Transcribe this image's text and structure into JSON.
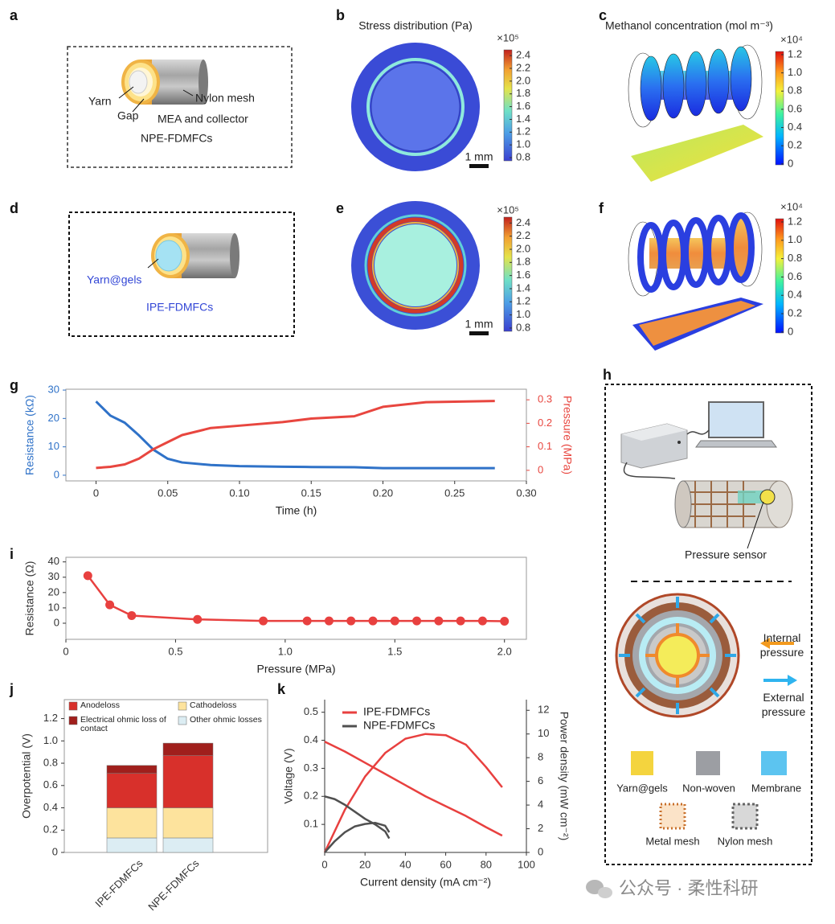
{
  "panel_labels": [
    "a",
    "b",
    "c",
    "d",
    "e",
    "f",
    "g",
    "h",
    "i",
    "j",
    "k"
  ],
  "a": {
    "labels": [
      "Yarn",
      "Gap",
      "Nylon mesh",
      "MEA and collector"
    ],
    "name": "NPE-FDMFCs"
  },
  "b": {
    "title": "Stress distribution (Pa)",
    "scale_bar": "1 mm",
    "colorbar": {
      "multiplier": "×10⁵",
      "lim": [
        0.75,
        2.49
      ],
      "ticks": [
        2.4,
        2.2,
        {
          "value": 2,
          "label": "2.0"
        },
        1.8,
        1.6,
        1.4,
        1.2,
        {
          "value": 1,
          "label": "1.0"
        },
        0.8
      ]
    }
  },
  "c": {
    "title": "Methanol concentration (mol m⁻³)",
    "colorbar": {
      "multiplier": "×10⁴",
      "lim": [
        -0.01,
        1.235
      ],
      "ticks": [
        1.2,
        {
          "value": 1,
          "label": "1.0"
        },
        0.8,
        0.6,
        0.4,
        0.2,
        0
      ]
    }
  },
  "d": {
    "labels": [
      "Yarn@gels"
    ],
    "name": "IPE-FDMFCs"
  },
  "e": {
    "scale_bar": "1 mm",
    "colorbar": {
      "multiplier": "×10⁵",
      "lim": [
        0.75,
        2.49
      ],
      "ticks": [
        2.4,
        2.2,
        {
          "value": 2,
          "label": "2.0"
        },
        1.8,
        1.6,
        1.4,
        1.2,
        {
          "value": 1,
          "label": "1.0"
        },
        0.8
      ]
    }
  },
  "f": {
    "colorbar": {
      "multiplier": "×10⁴",
      "lim": [
        -0.01,
        1.235
      ],
      "ticks": [
        1.2,
        {
          "value": 1,
          "label": "1.0"
        },
        0.8,
        0.6,
        0.4,
        0.2,
        0
      ]
    }
  },
  "h": {
    "labels": [
      "Pressure sensor",
      "Internal pressure",
      "External pressure"
    ],
    "materials": [
      "Yarn@gels",
      "Non-woven",
      "Membrane",
      "Metal mesh",
      "Nylon mesh"
    ]
  },
  "watermark": "公众号 · 柔性科研",
  "chart_data": [
    {
      "type": "line",
      "x": [
        0,
        0.01,
        0.02,
        0.03,
        0.04,
        0.05,
        0.06,
        0.08,
        0.1,
        0.13,
        0.15,
        0.18,
        0.2,
        0.23,
        0.278
      ],
      "series": [
        {
          "color": "#2f72c8",
          "values": [
            26,
            21,
            18.5,
            14,
            9,
            5.8,
            4.5,
            3.6,
            3.2,
            3.0,
            2.9,
            2.8,
            2.5,
            2.5,
            2.5
          ]
        },
        {
          "color": "#e8463f",
          "axis": "y2",
          "values": [
            0.01,
            0.015,
            0.025,
            0.05,
            0.09,
            0.12,
            0.15,
            0.18,
            0.19,
            0.205,
            0.22,
            0.23,
            0.27,
            0.29,
            0.295
          ]
        }
      ],
      "xlim": [
        -0.021,
        0.3
      ],
      "ylim": [
        -2,
        30.3
      ],
      "y2lim": [
        -0.045,
        0.345
      ],
      "xticks": [
        0,
        0.05,
        {
          "value": 0.1,
          "label": "0.10"
        },
        0.15,
        {
          "value": 0.2,
          "label": "0.20"
        },
        0.25,
        {
          "value": 0.3,
          "label": "0.30"
        }
      ],
      "yticks": [
        0,
        10,
        20,
        30
      ],
      "y2ticks": [
        0,
        0.1,
        0.2,
        0.3
      ],
      "xlabel": "Time (h)",
      "ylabel": "Resistance (kΩ)",
      "y2label": "Pressure (MPa)"
    },
    {
      "type": "line",
      "markers": true,
      "x": [
        0.1,
        0.2,
        0.3,
        0.6,
        0.9,
        1.1,
        1.2,
        1.3,
        1.4,
        1.5,
        1.6,
        1.7,
        1.8,
        1.9,
        2.0
      ],
      "series": [
        {
          "color": "#e8403f",
          "values": [
            31,
            12,
            5,
            2.5,
            1.5,
            1.5,
            1.5,
            1.5,
            1.5,
            1.5,
            1.5,
            1.5,
            1.5,
            1.5,
            1.3
          ]
        }
      ],
      "xlim": [
        0,
        2.1
      ],
      "ylim": [
        -10.5,
        43
      ],
      "xticks": [
        0,
        0.5,
        {
          "value": 1,
          "label": "1.0"
        },
        1.5,
        {
          "value": 2,
          "label": "2.0"
        }
      ],
      "yticks": [
        0,
        10,
        20,
        30,
        40
      ],
      "xlabel": "Pressure (MPa)",
      "ylabel": "Resistance (Ω)"
    },
    {
      "type": "bar",
      "stacked": true,
      "categories": [
        "IPE-FDMFCs",
        "NPE-FDMFCs"
      ],
      "series": [
        {
          "name": "Other ohmic losses",
          "color": "#dcedf3",
          "values": [
            0.13,
            0.13
          ]
        },
        {
          "name": "Cathodeloss",
          "color": "#fde39d",
          "values": [
            0.27,
            0.27
          ]
        },
        {
          "name": "Anodeloss",
          "color": "#d8302b",
          "values": [
            0.31,
            0.47
          ]
        },
        {
          "name": "Electrical ohmic loss of contact",
          "color": "#a01f1c",
          "values": [
            0.07,
            0.11
          ]
        }
      ],
      "ylim": [
        0,
        1.37
      ],
      "yticks": [
        0,
        0.2,
        0.4,
        0.6,
        0.8,
        {
          "value": 1,
          "label": "1.0"
        },
        1.2
      ],
      "ylabel": "Overpotential (V)"
    },
    {
      "type": "line",
      "series": [
        {
          "name": "IPE-FDMFCs",
          "color": "#e8403f",
          "x": [
            0,
            10,
            20,
            30,
            40,
            50,
            60,
            70,
            80,
            88
          ],
          "values": [
            0.395,
            0.36,
            0.32,
            0.28,
            0.24,
            0.2,
            0.165,
            0.13,
            0.09,
            0.06
          ]
        },
        {
          "color": "#e8403f",
          "axis": "y2",
          "x": [
            0,
            10,
            20,
            30,
            40,
            50,
            60,
            70,
            80,
            88
          ],
          "values": [
            0,
            3.6,
            6.4,
            8.4,
            9.6,
            10.0,
            9.9,
            9.1,
            7.2,
            5.5
          ]
        },
        {
          "name": "NPE-FDMFCs",
          "color": "#505050",
          "x": [
            0,
            5,
            10,
            15,
            20,
            25,
            30,
            32
          ],
          "values": [
            0.2,
            0.19,
            0.17,
            0.145,
            0.12,
            0.1,
            0.075,
            0.05
          ]
        },
        {
          "color": "#505050",
          "axis": "y2",
          "x": [
            0,
            5,
            10,
            15,
            20,
            25,
            30,
            32
          ],
          "values": [
            0,
            0.95,
            1.7,
            2.2,
            2.4,
            2.5,
            2.25,
            1.7
          ]
        }
      ],
      "xlim": [
        0,
        100
      ],
      "ylim": [
        0,
        0.545
      ],
      "y2lim": [
        0,
        12.9
      ],
      "xticks": [
        0,
        20,
        40,
        60,
        80,
        100
      ],
      "yticks": [
        0.1,
        0.2,
        0.3,
        0.4,
        0.5
      ],
      "y2ticks": [
        0,
        2,
        4,
        6,
        8,
        10,
        12
      ],
      "xlabel": "Current density (mA cm⁻²)",
      "ylabel": "Voltage (V)",
      "y2label": "Power density (mW cm⁻²)"
    }
  ]
}
